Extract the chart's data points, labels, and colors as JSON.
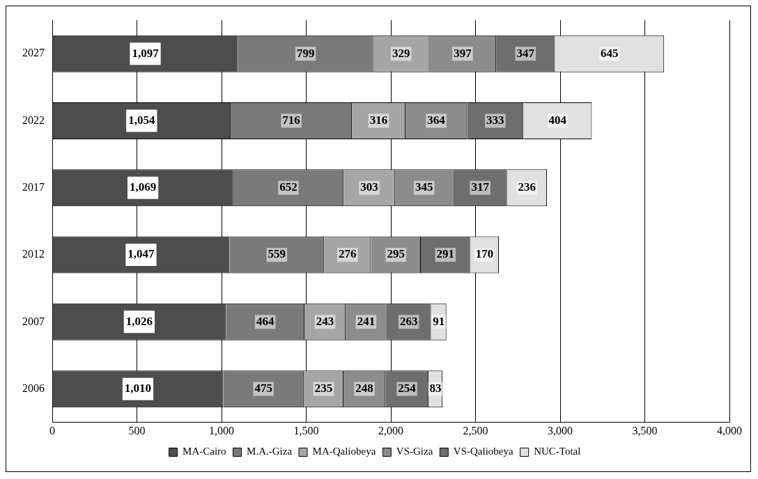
{
  "chart_data": {
    "type": "bar",
    "orientation": "horizontal",
    "stacked": true,
    "categories": [
      "2027",
      "2022",
      "2017",
      "2012",
      "2007",
      "2006"
    ],
    "series": [
      {
        "name": "MA-Cairo",
        "color": "#4d4d4d",
        "values": [
          1097,
          1054,
          1069,
          1047,
          1026,
          1010
        ],
        "value_labels": [
          "1,097",
          "1,054",
          "1,069",
          "1,047",
          "1,026",
          "1,010"
        ]
      },
      {
        "name": "M.A.-Giza",
        "color": "#7a7a7a",
        "values": [
          799,
          716,
          652,
          559,
          464,
          475
        ],
        "value_labels": [
          "799",
          "716",
          "652",
          "559",
          "464",
          "475"
        ]
      },
      {
        "name": "MA-Qaliobeya",
        "color": "#a6a6a6",
        "values": [
          329,
          316,
          303,
          276,
          243,
          235
        ],
        "value_labels": [
          "329",
          "316",
          "303",
          "276",
          "243",
          "235"
        ]
      },
      {
        "name": "VS-Giza",
        "color": "#8c8c8c",
        "values": [
          397,
          364,
          345,
          295,
          241,
          248
        ],
        "value_labels": [
          "397",
          "364",
          "345",
          "295",
          "241",
          "248"
        ]
      },
      {
        "name": "VS-Qaliobeya",
        "color": "#6e6e6e",
        "values": [
          347,
          333,
          317,
          291,
          263,
          254
        ],
        "value_labels": [
          "347",
          "333",
          "317",
          "291",
          "263",
          "254"
        ]
      },
      {
        "name": "NUC-Total",
        "color": "#e0e0e0",
        "values": [
          645,
          404,
          236,
          170,
          91,
          83
        ],
        "value_labels": [
          "645",
          "404",
          "236",
          "170",
          "91",
          "83"
        ]
      }
    ],
    "xlim": [
      0,
      4000
    ],
    "xticks": [
      {
        "value": 0,
        "label": "0"
      },
      {
        "value": 500,
        "label": "500"
      },
      {
        "value": 1000,
        "label": "1,000"
      },
      {
        "value": 1500,
        "label": "1,500"
      },
      {
        "value": 2000,
        "label": "2,000"
      },
      {
        "value": 2500,
        "label": "2,500"
      },
      {
        "value": 3000,
        "label": "3,000"
      },
      {
        "value": 3500,
        "label": "3,500"
      },
      {
        "value": 4000,
        "label": "4,000"
      }
    ],
    "grid": "x",
    "legend": "bottom"
  }
}
